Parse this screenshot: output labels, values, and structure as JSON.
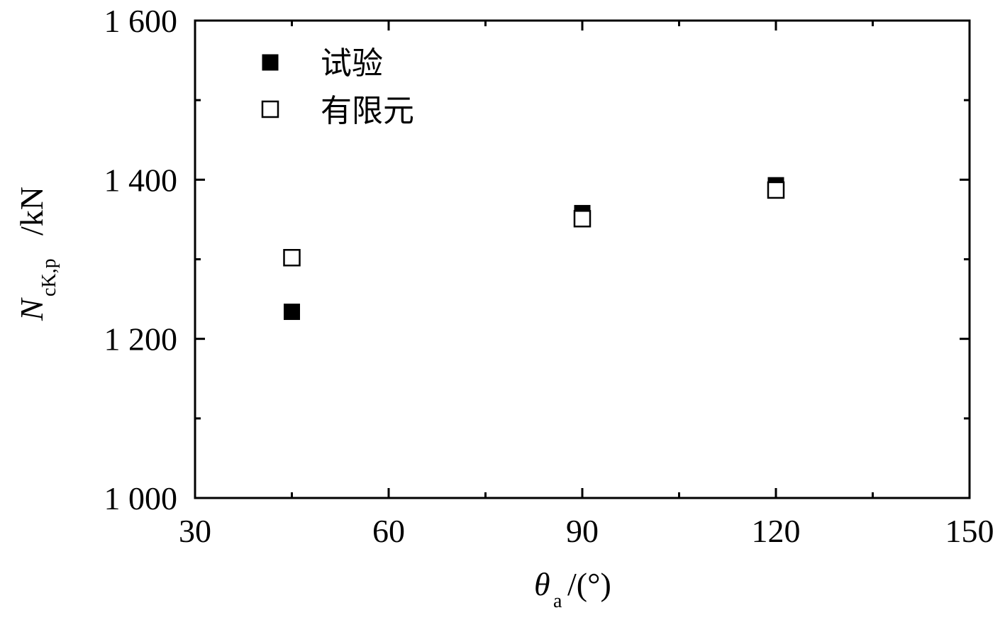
{
  "chart_data": {
    "type": "scatter",
    "xlim": [
      30,
      150
    ],
    "ylim": [
      1000,
      1600
    ],
    "x_ticks": [
      30,
      60,
      90,
      120,
      150
    ],
    "x_tick_labels": [
      "30",
      "60",
      "90",
      "120",
      "150"
    ],
    "y_ticks": [
      1000,
      1200,
      1400,
      1600
    ],
    "y_tick_labels": [
      "1 000",
      "1 200",
      "1 400",
      "1 600"
    ],
    "xlabel": {
      "symbol": "θ",
      "subscript": "a",
      "unit": " /(°)"
    },
    "ylabel": {
      "symbol": "N",
      "subscript": "cK,p",
      "unit": " /kN"
    },
    "grid": false,
    "legend_position": "top-left",
    "series": [
      {
        "name": "试验",
        "marker": "filled-square",
        "color": "#000000",
        "points": [
          {
            "x": 45,
            "y": 1234
          },
          {
            "x": 90,
            "y": 1358
          },
          {
            "x": 120,
            "y": 1393
          }
        ]
      },
      {
        "name": "有限元",
        "marker": "open-square",
        "color": "#000000",
        "points": [
          {
            "x": 45,
            "y": 1302
          },
          {
            "x": 90,
            "y": 1351
          },
          {
            "x": 120,
            "y": 1387
          }
        ]
      }
    ]
  }
}
